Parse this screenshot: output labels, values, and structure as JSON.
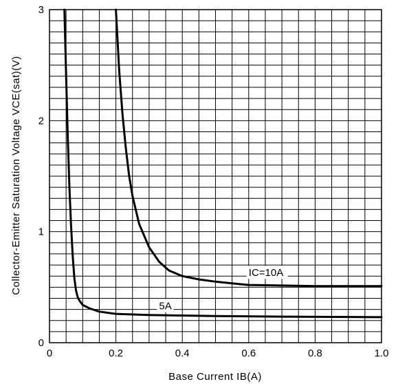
{
  "chart_data": {
    "type": "line",
    "xlabel": "Base Current IB(A)",
    "ylabel": "Collector-Emitter Saturation Voltage VCE(sat)(V)",
    "xlim": [
      0,
      1.0
    ],
    "ylim": [
      0,
      3
    ],
    "x_ticks": [
      "0",
      "0.2",
      "0.4",
      "0.6",
      "0.8",
      "1.0"
    ],
    "y_ticks": [
      "0",
      "1",
      "2",
      "3"
    ],
    "grid": true,
    "series": [
      {
        "name": "5A",
        "x": [
          0.045,
          0.05,
          0.055,
          0.06,
          0.065,
          0.07,
          0.075,
          0.08,
          0.085,
          0.09,
          0.1,
          0.12,
          0.15,
          0.2,
          0.3,
          0.4,
          0.5,
          0.7,
          1.0
        ],
        "y": [
          3.0,
          2.4,
          1.85,
          1.4,
          1.05,
          0.78,
          0.58,
          0.47,
          0.41,
          0.38,
          0.34,
          0.31,
          0.28,
          0.26,
          0.25,
          0.245,
          0.24,
          0.235,
          0.23
        ]
      },
      {
        "name": "IC=10A",
        "x": [
          0.2,
          0.21,
          0.22,
          0.23,
          0.24,
          0.25,
          0.27,
          0.3,
          0.33,
          0.36,
          0.4,
          0.45,
          0.5,
          0.55,
          0.6,
          0.7,
          0.8,
          0.9,
          1.0
        ],
        "y": [
          3.0,
          2.45,
          2.05,
          1.75,
          1.5,
          1.32,
          1.07,
          0.86,
          0.73,
          0.65,
          0.6,
          0.57,
          0.55,
          0.535,
          0.52,
          0.515,
          0.51,
          0.51,
          0.51
        ]
      }
    ],
    "annotations": [
      {
        "text": "IC=10A",
        "x": 0.6,
        "y": 0.6
      },
      {
        "text": "5A",
        "x": 0.33,
        "y": 0.3
      }
    ]
  }
}
